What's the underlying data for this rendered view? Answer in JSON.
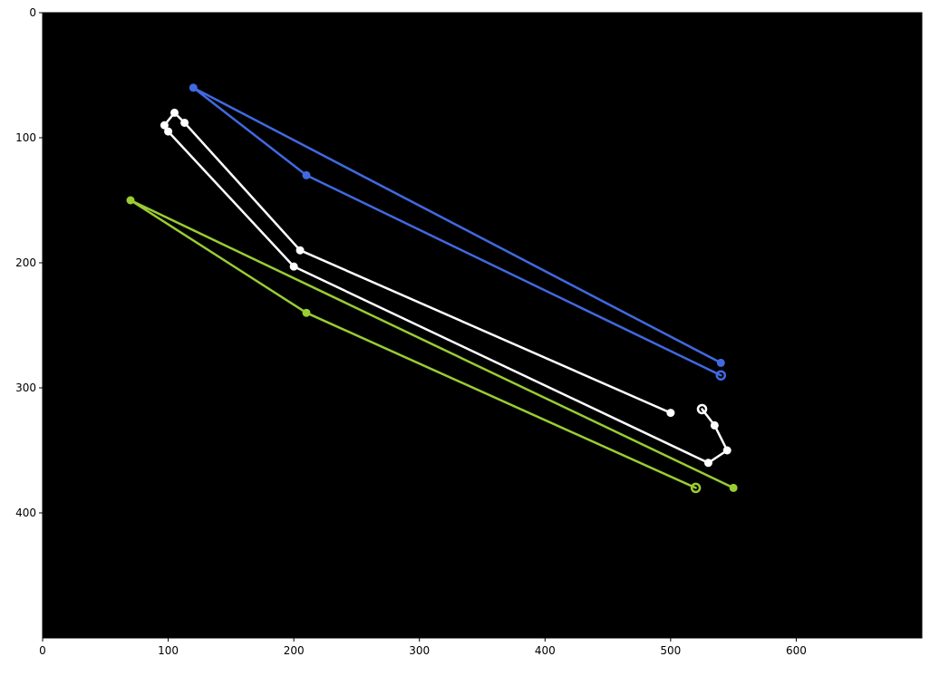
{
  "chart_data": {
    "type": "line",
    "title": "",
    "xlabel": "",
    "ylabel": "",
    "xlim": [
      0,
      700
    ],
    "ylim": [
      500,
      0
    ],
    "y_inverted": true,
    "grid": false,
    "legend": "none",
    "background": "#000000",
    "x_ticks": [
      "0",
      "100",
      "200",
      "300",
      "400",
      "500",
      "600"
    ],
    "y_ticks": [
      "0",
      "100",
      "200",
      "300",
      "400"
    ],
    "series": [
      {
        "color": "#4169e1",
        "marker": "filled",
        "closed_end_marker": "ring",
        "points": [
          [
            540,
            280
          ],
          [
            120,
            60
          ],
          [
            210,
            130
          ],
          [
            540,
            290
          ]
        ]
      },
      {
        "color": "#ffffff",
        "marker": "filled",
        "closed_end_marker": "ring",
        "points": [
          [
            500,
            320
          ],
          [
            205,
            190
          ],
          [
            113,
            88
          ],
          [
            105,
            80
          ],
          [
            97,
            90
          ],
          [
            100,
            95
          ],
          [
            200,
            203
          ],
          [
            530,
            360
          ],
          [
            545,
            350
          ],
          [
            535,
            330
          ],
          [
            525,
            317
          ]
        ]
      },
      {
        "color": "#9acd32",
        "marker": "filled",
        "closed_end_marker": "ring",
        "points": [
          [
            550,
            380
          ],
          [
            70,
            150
          ],
          [
            210,
            240
          ],
          [
            520,
            380
          ]
        ]
      }
    ]
  }
}
